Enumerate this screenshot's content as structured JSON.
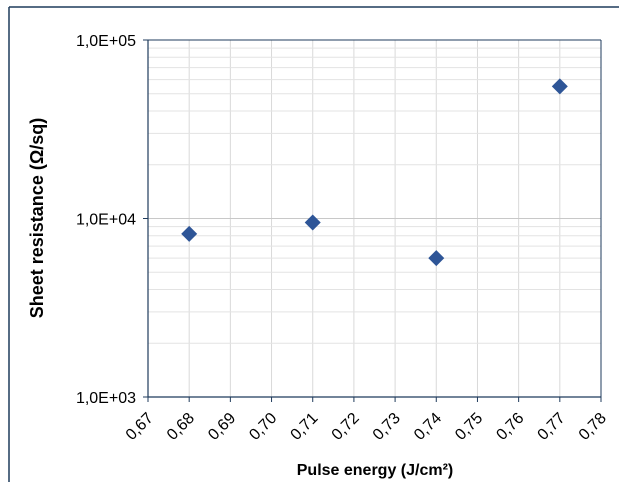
{
  "chart_data": {
    "type": "scatter",
    "title": "",
    "xlabel": "Pulse energy (J/cm²)",
    "ylabel": "Sheet resistance (Ω/sq)",
    "x_scale": "linear",
    "y_scale": "log",
    "xlim": [
      0.67,
      0.78
    ],
    "ylim": [
      1000,
      100000
    ],
    "x_ticks": [
      "0,67",
      "0,68",
      "0,69",
      "0,70",
      "0,71",
      "0,72",
      "0,73",
      "0,74",
      "0,75",
      "0,76",
      "0,77",
      "0,78"
    ],
    "y_ticks": [
      "1,0E+03",
      "1,0E+04",
      "1,0E+05"
    ],
    "grid": true,
    "series": [
      {
        "color": "#2e5597",
        "marker": "diamond",
        "points": [
          {
            "x": 0.68,
            "y": 8200
          },
          {
            "x": 0.71,
            "y": 9500
          },
          {
            "x": 0.74,
            "y": 6000
          },
          {
            "x": 0.77,
            "y": 55000
          }
        ]
      }
    ]
  }
}
